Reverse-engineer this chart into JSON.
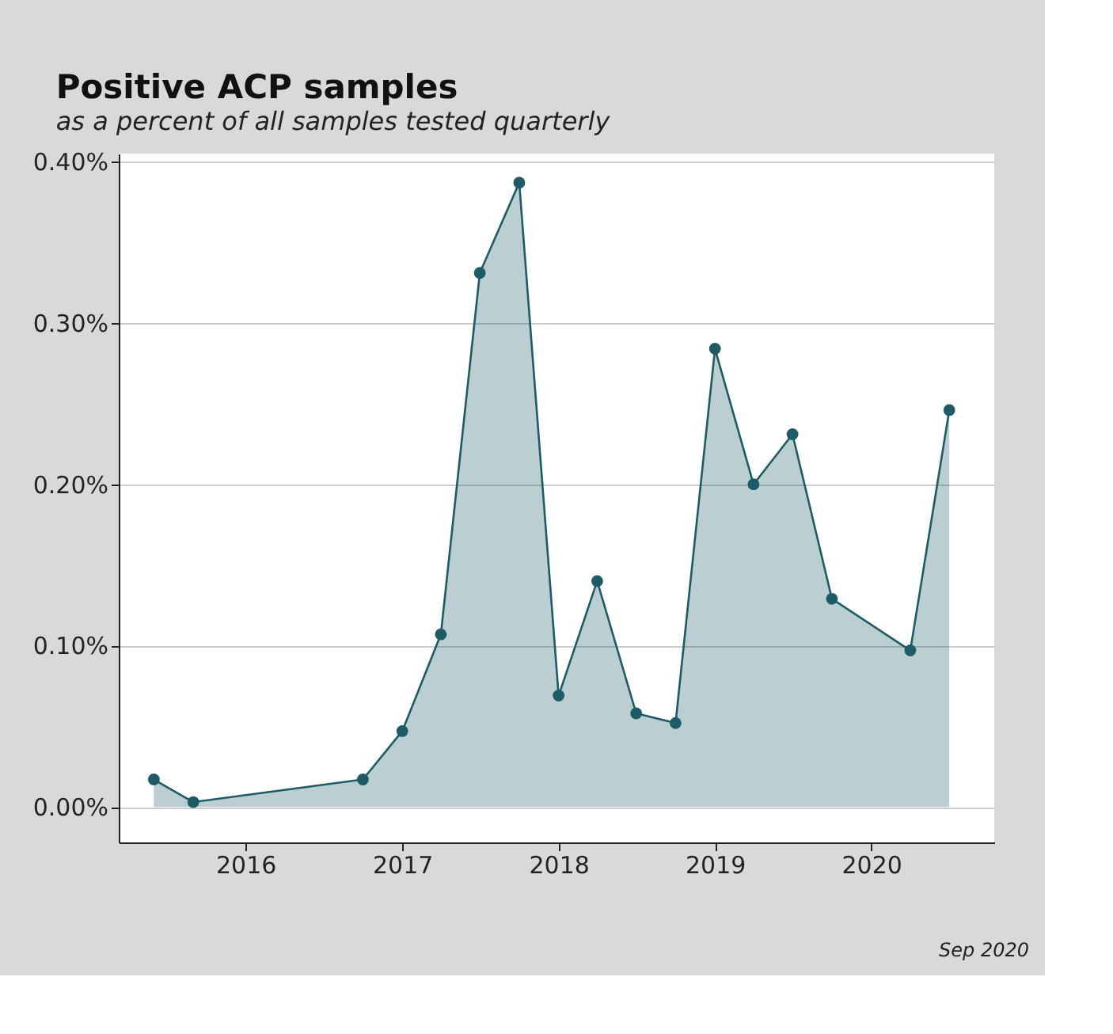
{
  "chart_data": {
    "type": "area",
    "title": "Positive ACP samples",
    "subtitle": "as a percent of all samples tested quarterly",
    "x": [
      "2015-06",
      "2015-09",
      "2016-10",
      "2017-01",
      "2017-04",
      "2017-07",
      "2017-10",
      "2018-01",
      "2018-04",
      "2018-07",
      "2018-10",
      "2019-01",
      "2019-04",
      "2019-07",
      "2019-10",
      "2020-04",
      "2020-07"
    ],
    "series": [
      {
        "color": "#1d5c66",
        "values": [
          0.017,
          0.003,
          0.017,
          0.047,
          0.107,
          0.331,
          0.387,
          0.069,
          0.14,
          0.058,
          0.052,
          0.284,
          0.2,
          0.231,
          0.129,
          0.097,
          0.246
        ]
      }
    ],
    "xlim": [
      "2015-03-11",
      "2020-10-14"
    ],
    "xticks": [
      "2016",
      "2017",
      "2018",
      "2019",
      "2020"
    ],
    "ylim": [
      -0.022,
      0.405
    ],
    "yticks": [
      {
        "value": 0,
        "label": "0.00%"
      },
      {
        "value": 0.1,
        "label": "0.10%"
      },
      {
        "value": 0.2,
        "label": "0.20%"
      },
      {
        "value": 0.3,
        "label": "0.30%"
      },
      {
        "value": 0.4,
        "label": "0.40%"
      }
    ],
    "grid": "y",
    "marker": "circle",
    "line_style": "solid",
    "annotations": [
      "Sep 2020"
    ]
  }
}
